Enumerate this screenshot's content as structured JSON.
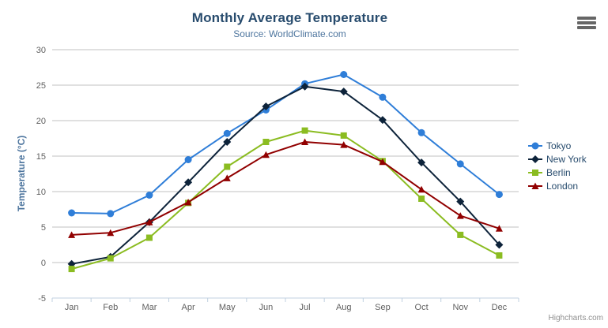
{
  "title": "Monthly Average Temperature",
  "subtitle": "Source: WorldClimate.com",
  "credit": "Highcharts.com",
  "chart_data": {
    "type": "line",
    "title": "Monthly Average Temperature",
    "subtitle": "Source: WorldClimate.com",
    "categories": [
      "Jan",
      "Feb",
      "Mar",
      "Apr",
      "May",
      "Jun",
      "Jul",
      "Aug",
      "Sep",
      "Oct",
      "Nov",
      "Dec"
    ],
    "series": [
      {
        "name": "Tokyo",
        "color": "#2f7ed8",
        "marker": "circle",
        "values": [
          7.0,
          6.9,
          9.5,
          14.5,
          18.2,
          21.5,
          25.2,
          26.5,
          23.3,
          18.3,
          13.9,
          9.6
        ]
      },
      {
        "name": "New York",
        "color": "#0d233a",
        "marker": "diamond",
        "values": [
          -0.2,
          0.8,
          5.7,
          11.3,
          17.0,
          22.0,
          24.8,
          24.1,
          20.1,
          14.1,
          8.6,
          2.5
        ]
      },
      {
        "name": "Berlin",
        "color": "#8bbc21",
        "marker": "square",
        "values": [
          -0.9,
          0.6,
          3.5,
          8.4,
          13.5,
          17.0,
          18.6,
          17.9,
          14.3,
          9.0,
          3.9,
          1.0
        ]
      },
      {
        "name": "London",
        "color": "#910000",
        "marker": "triangle",
        "values": [
          3.9,
          4.2,
          5.7,
          8.5,
          11.9,
          15.2,
          17.0,
          16.6,
          14.2,
          10.3,
          6.6,
          4.8
        ]
      }
    ],
    "xlabel": "",
    "ylabel": "Temperature (°C)",
    "ylim": [
      -5,
      30
    ],
    "ytick_step": 5,
    "grid": true,
    "legend_position": "right"
  },
  "colors": {
    "grid": "#c0c0c0",
    "axis_line": "#c0d0e0",
    "tick_label": "#606060",
    "title": "#274b6d",
    "subtitle": "#4d759e",
    "axis_title": "#4d759e",
    "legend_text": "#274b6d",
    "credit": "#909090",
    "menu_icon": "#666666"
  }
}
